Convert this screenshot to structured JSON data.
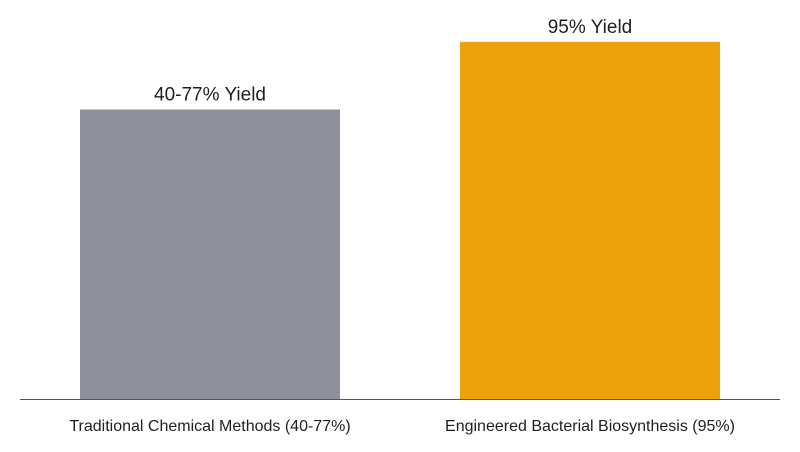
{
  "chart_data": {
    "type": "bar",
    "categories": [
      "Traditional Chemical Methods (40-77%)",
      "Engineered Bacterial Biosynthesis (95%)"
    ],
    "values": [
      77,
      95
    ],
    "data_labels": [
      "40-77% Yield",
      "95% Yield"
    ],
    "colors": [
      "#8e9199",
      "#eba20c"
    ],
    "axis_color": "#555555",
    "ylim": [
      0,
      100
    ],
    "grid": false,
    "title": "",
    "xlabel": "",
    "ylabel": ""
  }
}
